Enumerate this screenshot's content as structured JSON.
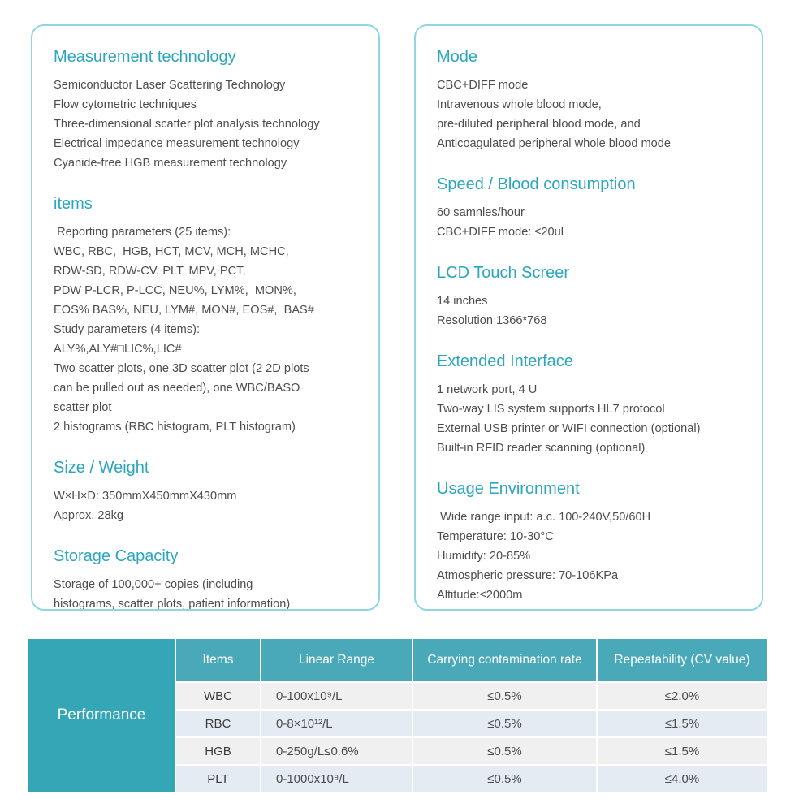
{
  "colors": {
    "accent": "#2ba6bf",
    "panel_border": "#8fd7e0",
    "text": "#4d4d4d",
    "table_header_bg": "#4aa9b9",
    "performance_bg": "#35a6b6",
    "row_gray": "#f0f0f0",
    "row_blue": "#e4ebf3",
    "header_text": "#ffffff"
  },
  "left_panel": {
    "sections": [
      {
        "title": "Measurement technology",
        "lines": [
          "Semiconductor Laser Scattering Technology",
          "Flow cytometric techniques",
          "Three-dimensional scatter plot analysis technology",
          "Electrical impedance measurement technology",
          "Cyanide-free HGB measurement technology"
        ]
      },
      {
        "title": "items",
        "lines": [
          " Reporting parameters (25 items):",
          "WBC, RBC,  HGB, HCT, MCV, MCH, MCHC,",
          "RDW-SD, RDW-CV, PLT, MPV, PCT,",
          "PDW P-LCR, P-LCC, NEU%, LYM%,  MON%,",
          "EOS% BAS%, NEU, LYM#, MON#, EOS#,  BAS#",
          "Study parameters (4 items):",
          "ALY%,ALY#□LIC%,LIC#",
          "Two scatter plots, one 3D scatter plot (2 2D plots",
          "can be pulled out as needed), one WBC/BASO",
          "scatter plot",
          "2 histograms (RBC histogram, PLT histogram)"
        ]
      },
      {
        "title": "Size / Weight",
        "lines": [
          "W×H×D: 350mmX450mmX430mm",
          "Approx. 28kg"
        ]
      },
      {
        "title": "Storage Capacity",
        "lines": [
          "Storage of 100,000+ copies (including",
          "histograms, scatter plots, patient information)"
        ]
      }
    ]
  },
  "right_panel": {
    "sections": [
      {
        "title": "Mode",
        "lines": [
          "CBC+DIFF mode",
          "Intravenous whole blood mode,",
          "pre-diluted peripheral blood mode, and",
          "Anticoagulated peripheral whole blood mode"
        ]
      },
      {
        "title": "Speed / Blood consumption",
        "lines": [
          "60 samnles/hour",
          "CBC+DIFF mode: ≤20ul"
        ]
      },
      {
        "title": "LCD Touch Screer",
        "lines": [
          "14 inches",
          "Resolution 1366*768"
        ]
      },
      {
        "title": "Extended Interface",
        "lines": [
          "1 network port, 4 U",
          "Two-way LIS system supports HL7 protocol",
          "External USB printer or WIFI connection (optional)",
          "Built-in RFID reader scanning (optional)"
        ]
      },
      {
        "title": "Usage Environment",
        "lines": [
          " Wide range input: a.c. 100-240V,50/60H",
          "Temperature: 10-30°C",
          "Humidity: 20-85%",
          "Atmospheric pressure: 70-106KPa",
          "Altitude:≤2000m"
        ]
      }
    ]
  },
  "performance_table": {
    "row_label": "Performance",
    "headers": [
      "Items",
      "Linear Range",
      "Carrying contamination rate",
      "Repeatability (CV value)"
    ],
    "rows": [
      {
        "item": "WBC",
        "linear_range": "0-100x10⁹/L",
        "contamination": "≤0.5%",
        "repeatability": "≤2.0%"
      },
      {
        "item": "RBC",
        "linear_range": "0-8×10¹²/L",
        "contamination": "≤0.5%",
        "repeatability": "≤1.5%"
      },
      {
        "item": "HGB",
        "linear_range": "0-250g/L≤0.6%",
        "contamination": "≤0.5%",
        "repeatability": "≤1.5%"
      },
      {
        "item": "PLT",
        "linear_range": "0-1000x10⁹/L",
        "contamination": "≤0.5%",
        "repeatability": "≤4.0%"
      }
    ]
  }
}
